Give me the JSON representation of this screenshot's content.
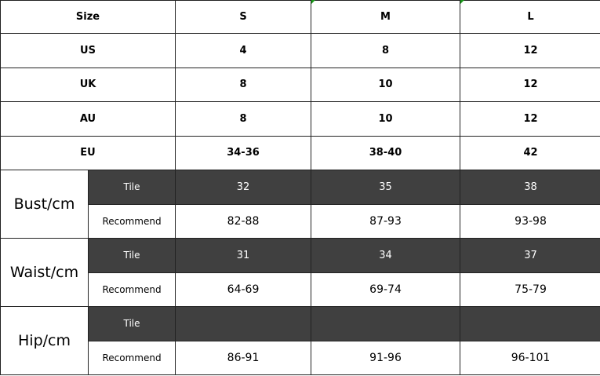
{
  "header": [
    "Size",
    "S",
    "M",
    "L"
  ],
  "size_rows": [
    {
      "label": "US",
      "values": [
        "4",
        "8",
        "12"
      ]
    },
    {
      "label": "UK",
      "values": [
        "8",
        "10",
        "12"
      ]
    },
    {
      "label": "AU",
      "values": [
        "8",
        "10",
        "12"
      ]
    },
    {
      "label": "EU",
      "values": [
        "34-36",
        "38-40",
        "42"
      ]
    }
  ],
  "measure_rows": [
    {
      "label": "Bust/cm",
      "tile_label": "Tile",
      "tile": [
        "32",
        "35",
        "38"
      ],
      "rec_label": "Recommend",
      "rec": [
        "82-88",
        "87-93",
        "93-98"
      ]
    },
    {
      "label": "Waist/cm",
      "tile_label": "Tile",
      "tile": [
        "31",
        "34",
        "37"
      ],
      "rec_label": "Recommend",
      "rec": [
        "64-69",
        "69-74",
        "75-79"
      ]
    },
    {
      "label": "Hip/cm",
      "tile_label": "Tile",
      "tile": [
        "",
        "",
        ""
      ],
      "rec_label": "Recommend",
      "rec": [
        "86-91",
        "91-96",
        "96-101"
      ]
    }
  ],
  "colors": {
    "dark_fill": "#404040",
    "corner_mark": "#1a9a1a"
  }
}
